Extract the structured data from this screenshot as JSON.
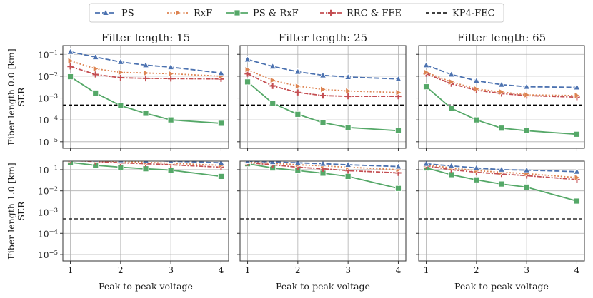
{
  "colors": {
    "ps": "#4c72b0",
    "rxf": "#dd8452",
    "psrxf": "#55a868",
    "rrc": "#c44e52",
    "fec": "#000000"
  },
  "legend": {
    "items": [
      {
        "key": "ps",
        "label": "PS"
      },
      {
        "key": "rxf",
        "label": "RxF"
      },
      {
        "key": "psrxf",
        "label": "PS & RxF"
      },
      {
        "key": "rrc",
        "label": "RRC & FFE"
      },
      {
        "key": "fec",
        "label": "KP4-FEC"
      }
    ]
  },
  "chart_data": {
    "type": "line",
    "xlabel": "Peak-to-peak voltage",
    "ylabel_prefix": "SER",
    "x": [
      1,
      1.5,
      2,
      2.5,
      3,
      4
    ],
    "xticks": [
      "1",
      "2",
      "3",
      "4"
    ],
    "yticks": [
      "10^{-5}",
      "10^{-4}",
      "10^{-3}",
      "10^{-2}",
      "10^{-1}"
    ],
    "ylim_log10": [
      -5.3,
      -0.6
    ],
    "xlim": [
      0.85,
      4.15
    ],
    "fec_threshold": 0.00048,
    "row_labels": [
      "Fiber length 0.0 [km]",
      "Fiber length 1.0 [km]"
    ],
    "col_titles": [
      "Filter length: 15",
      "Filter length: 25",
      "Filter length: 65"
    ],
    "panels": [
      {
        "row": 0,
        "col": 0,
        "series": {
          "ps": [
            0.13,
            0.075,
            0.045,
            0.032,
            0.026,
            0.014
          ],
          "rxf": [
            0.05,
            0.022,
            0.015,
            0.014,
            0.013,
            0.01
          ],
          "rrc": [
            0.028,
            0.012,
            0.0085,
            0.008,
            0.0078,
            0.0075
          ],
          "psrxf": [
            0.0095,
            0.0017,
            0.00045,
            0.0002,
            0.0001,
            7e-05
          ]
        }
      },
      {
        "row": 0,
        "col": 1,
        "series": {
          "ps": [
            0.058,
            0.028,
            0.016,
            0.011,
            0.0092,
            0.0075
          ],
          "rxf": [
            0.02,
            0.0065,
            0.0035,
            0.0025,
            0.0021,
            0.0018
          ],
          "rrc": [
            0.013,
            0.0036,
            0.0018,
            0.0013,
            0.0012,
            0.0012
          ],
          "psrxf": [
            0.0055,
            0.00058,
            0.00018,
            7.5e-05,
            4.5e-05,
            3.2e-05
          ]
        }
      },
      {
        "row": 0,
        "col": 2,
        "series": {
          "ps": [
            0.032,
            0.012,
            0.0062,
            0.0041,
            0.0033,
            0.0031
          ],
          "rxf": [
            0.015,
            0.0055,
            0.0026,
            0.0019,
            0.0014,
            0.0013
          ],
          "rrc": [
            0.013,
            0.0045,
            0.0023,
            0.0016,
            0.0013,
            0.0011
          ],
          "psrxf": [
            0.0033,
            0.00034,
            0.0001,
            4.2e-05,
            3.2e-05,
            2.2e-05
          ]
        }
      },
      {
        "row": 1,
        "col": 0,
        "series": {
          "ps": [
            0.32,
            0.3,
            0.28,
            0.27,
            0.25,
            0.21
          ],
          "rxf": [
            0.29,
            0.26,
            0.24,
            0.22,
            0.2,
            0.16
          ],
          "rrc": [
            0.27,
            0.24,
            0.21,
            0.19,
            0.17,
            0.13
          ],
          "psrxf": [
            0.22,
            0.16,
            0.13,
            0.11,
            0.095,
            0.048
          ]
        }
      },
      {
        "row": 1,
        "col": 1,
        "series": {
          "ps": [
            0.25,
            0.23,
            0.21,
            0.19,
            0.17,
            0.14
          ],
          "rxf": [
            0.23,
            0.2,
            0.17,
            0.15,
            0.13,
            0.1
          ],
          "rrc": [
            0.21,
            0.17,
            0.13,
            0.11,
            0.09,
            0.07
          ],
          "psrxf": [
            0.19,
            0.12,
            0.09,
            0.068,
            0.048,
            0.013
          ]
        }
      },
      {
        "row": 1,
        "col": 2,
        "series": {
          "ps": [
            0.19,
            0.15,
            0.12,
            0.1,
            0.095,
            0.08
          ],
          "rxf": [
            0.17,
            0.12,
            0.09,
            0.075,
            0.065,
            0.042
          ],
          "rrc": [
            0.15,
            0.1,
            0.075,
            0.062,
            0.052,
            0.034
          ],
          "psrxf": [
            0.12,
            0.058,
            0.033,
            0.021,
            0.015,
            0.0033
          ]
        }
      }
    ]
  }
}
